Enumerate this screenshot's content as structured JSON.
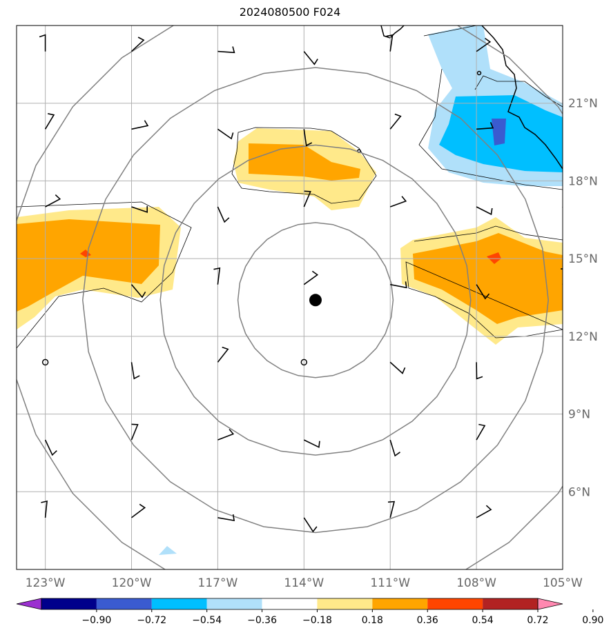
{
  "title": "2024080500 F024",
  "map": {
    "lon_range": [
      -124.0,
      -105.0
    ],
    "lat_range": [
      3.0,
      24.0
    ],
    "lon_ticks": [
      {
        "value": -123,
        "label": "123°W"
      },
      {
        "value": -120,
        "label": "120°W"
      },
      {
        "value": -117,
        "label": "117°W"
      },
      {
        "value": -114,
        "label": "114°W"
      },
      {
        "value": -111,
        "label": "111°W"
      },
      {
        "value": -108,
        "label": "108°W"
      },
      {
        "value": -105,
        "label": "105°W"
      }
    ],
    "lat_ticks": [
      {
        "value": 21,
        "label": "21°N"
      },
      {
        "value": 18,
        "label": "18°N"
      },
      {
        "value": 15,
        "label": "15°N"
      },
      {
        "value": 12,
        "label": "12°N"
      },
      {
        "value": 9,
        "label": "9°N"
      },
      {
        "value": 6,
        "label": "6°N"
      }
    ],
    "storm_center": {
      "lon": -113.6,
      "lat": 13.4
    },
    "range_rings_deg": [
      2.7,
      5.4,
      8.1,
      10.8
    ]
  },
  "colorbar": {
    "labels": [
      "−0.90",
      "−0.72",
      "−0.54",
      "−0.36",
      "−0.18",
      "0.18",
      "0.36",
      "0.54",
      "0.72",
      "0.90"
    ],
    "colors": [
      "#9b30d0",
      "#00008b",
      "#3a5bd0",
      "#00bfff",
      "#b0e0fa",
      "#ffffff",
      "#ffe98a",
      "#ffa500",
      "#ff4500",
      "#b22222",
      "#ff88b0"
    ]
  }
}
